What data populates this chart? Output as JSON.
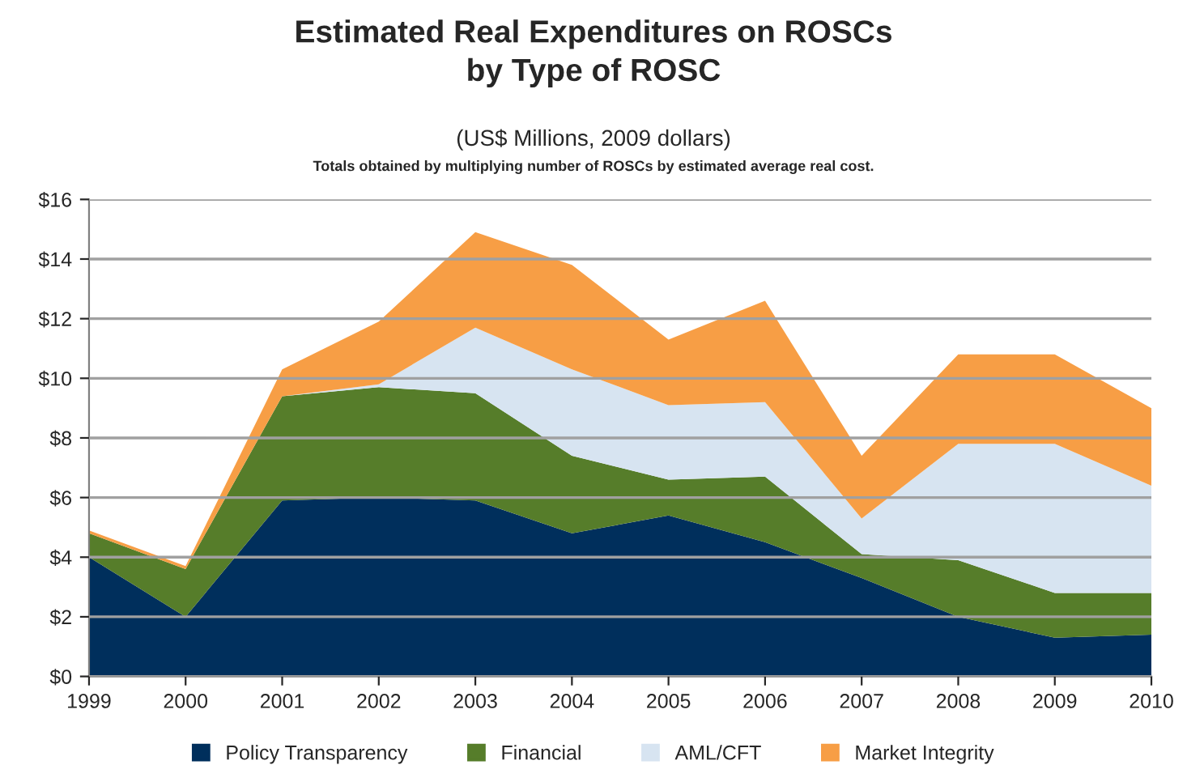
{
  "chart_data": {
    "type": "area",
    "stacked": true,
    "title": "Estimated Real Expenditures on ROSCs\nby Type of ROSC",
    "subtitle": "(US$ Millions, 2009 dollars)",
    "annotations": [
      "Totals obtained by multiplying number of ROSCs by estimated average real cost."
    ],
    "x": [
      "1999",
      "2000",
      "2001",
      "2002",
      "2003",
      "2004",
      "2005",
      "2006",
      "2007",
      "2008",
      "2009",
      "2010"
    ],
    "xlim": [
      "1999",
      "2010"
    ],
    "xticks": [
      {
        "value": "1999",
        "label": "1999"
      },
      {
        "value": "2000",
        "label": "2000"
      },
      {
        "value": "2001",
        "label": "2001"
      },
      {
        "value": "2002",
        "label": "2002"
      },
      {
        "value": "2003",
        "label": "2003"
      },
      {
        "value": "2004",
        "label": "2004"
      },
      {
        "value": "2005",
        "label": "2005"
      },
      {
        "value": "2006",
        "label": "2006"
      },
      {
        "value": "2007",
        "label": "2007"
      },
      {
        "value": "2008",
        "label": "2008"
      },
      {
        "value": "2009",
        "label": "2009"
      },
      {
        "value": "2010",
        "label": "2010"
      }
    ],
    "ylim": [
      0,
      16
    ],
    "yticks": [
      {
        "value": 0,
        "label": "$0"
      },
      {
        "value": 2,
        "label": "$2"
      },
      {
        "value": 4,
        "label": "$4"
      },
      {
        "value": 6,
        "label": "$6"
      },
      {
        "value": 8,
        "label": "$8"
      },
      {
        "value": 10,
        "label": "$10"
      },
      {
        "value": 12,
        "label": "$12"
      },
      {
        "value": 14,
        "label": "$14"
      },
      {
        "value": 16,
        "label": "$16"
      }
    ],
    "grid": "y",
    "legend": "bottom",
    "series": [
      {
        "name": "Policy Transparency",
        "color": "#002f5c",
        "values": [
          4.0,
          2.0,
          5.9,
          6.0,
          5.9,
          4.8,
          5.4,
          4.5,
          3.3,
          2.0,
          1.3,
          1.4
        ]
      },
      {
        "name": "Financial",
        "color": "#567d2a",
        "values": [
          0.8,
          1.6,
          3.5,
          3.7,
          3.6,
          2.6,
          1.2,
          2.2,
          0.8,
          1.9,
          1.5,
          1.4
        ]
      },
      {
        "name": "AML/CFT",
        "color": "#d7e4f1",
        "values": [
          0,
          0,
          0,
          0.1,
          2.2,
          2.9,
          2.5,
          2.5,
          1.2,
          3.9,
          5.0,
          3.6
        ]
      },
      {
        "name": "Market Integrity",
        "color": "#f79e45",
        "values": [
          0.1,
          0.1,
          0.9,
          2.1,
          3.2,
          3.5,
          2.2,
          3.4,
          2.1,
          3.0,
          3.0,
          2.6
        ]
      }
    ]
  }
}
